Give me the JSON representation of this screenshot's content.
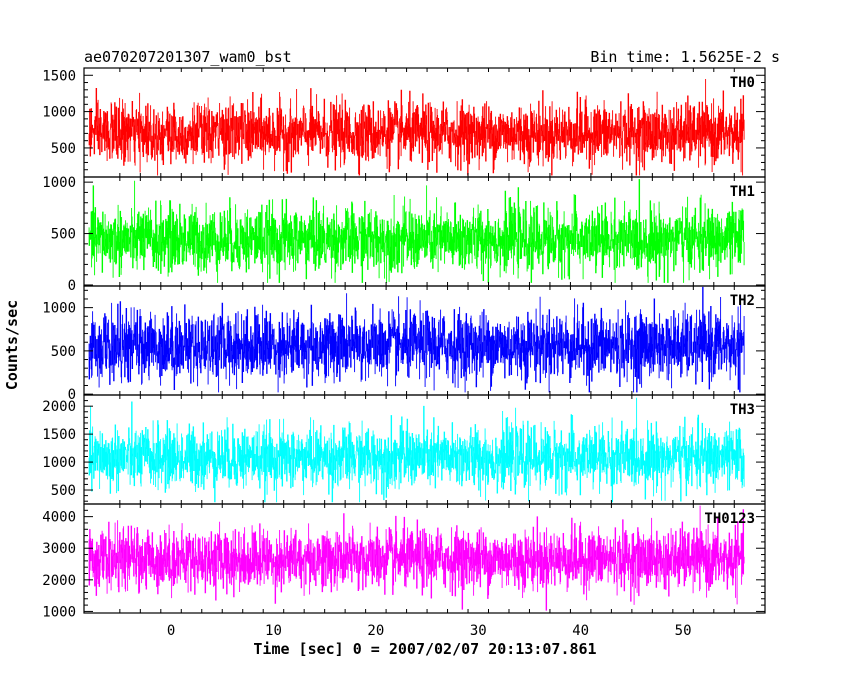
{
  "header": {
    "title": "ae070207201307_wam0_bst",
    "bin_time": "Bin time: 1.5625E-2 s"
  },
  "axes": {
    "xlabel": "Time [sec] 0 = 2007/02/07 20:13:07.861",
    "ylabel": "Counts/sec"
  },
  "chart_data": {
    "type": "line",
    "style": "dense noisy light curve, vertical-line fill",
    "xlim": [
      -8.5,
      58
    ],
    "x_range": [
      -8,
      56
    ],
    "x_ticks": [
      0,
      10,
      20,
      30,
      40,
      50
    ],
    "x_tick_labels": [
      "0",
      "10",
      "20",
      "30",
      "40",
      "50"
    ],
    "grid": false,
    "panels": [
      {
        "name": "TH0",
        "color": "#ff0000",
        "ylim": [
          100,
          1600
        ],
        "yticks": [
          500,
          1000,
          1500
        ],
        "ytick_labels": [
          "500",
          "1000",
          "1500"
        ],
        "mean": 700,
        "sigma": 210,
        "floor": 120,
        "ceil": 1600
      },
      {
        "name": "TH1",
        "color": "#00ff00",
        "ylim": [
          -10,
          1050
        ],
        "yticks": [
          0,
          500,
          1000
        ],
        "ytick_labels": [
          "0",
          "500",
          "1000"
        ],
        "mean": 440,
        "sigma": 160,
        "floor": 20,
        "ceil": 1030
      },
      {
        "name": "TH2",
        "color": "#0000ff",
        "ylim": [
          -10,
          1250
        ],
        "yticks": [
          0,
          500,
          1000
        ],
        "ytick_labels": [
          "0",
          "500",
          "1000"
        ],
        "mean": 560,
        "sigma": 200,
        "floor": 20,
        "ceil": 1240
      },
      {
        "name": "TH3",
        "color": "#00ffff",
        "ylim": [
          250,
          2200
        ],
        "yticks": [
          500,
          1000,
          1500,
          2000
        ],
        "ytick_labels": [
          "500",
          "1000",
          "1500",
          "2000"
        ],
        "mean": 1080,
        "sigma": 280,
        "floor": 280,
        "ceil": 2150
      },
      {
        "name": "TH0123",
        "color": "#ff00ff",
        "ylim": [
          950,
          4400
        ],
        "yticks": [
          1000,
          2000,
          3000,
          4000
        ],
        "ytick_labels": [
          "1000",
          "2000",
          "3000",
          "4000"
        ],
        "mean": 2650,
        "sigma": 480,
        "floor": 1000,
        "ceil": 4350
      }
    ]
  }
}
